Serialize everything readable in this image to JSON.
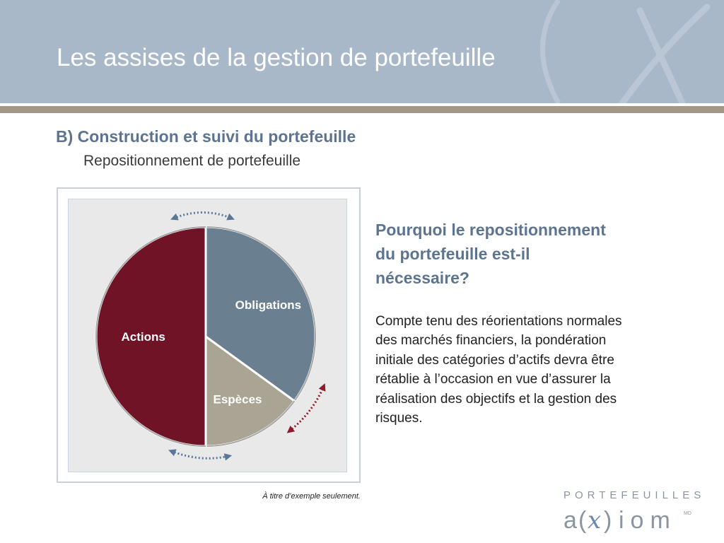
{
  "header": {
    "title": "Les assises de la gestion de portefeuille"
  },
  "section": {
    "title": "B) Construction et suivi du portefeuille",
    "subtitle": "Repositionnement de portefeuille"
  },
  "chart_data": {
    "type": "pie",
    "title": "",
    "slices": [
      {
        "label": "Obligations",
        "value": 35,
        "color": "#6a8090"
      },
      {
        "label": "Espèces",
        "value": 15,
        "color": "#a9a493"
      },
      {
        "label": "Actions",
        "value": 50,
        "color": "#701326"
      }
    ],
    "rebalancing_arrows": [
      "blue-dotted-double-arrow",
      "blue-dotted-double-arrow",
      "red-dotted-double-arrow"
    ]
  },
  "side": {
    "heading": "Pourquoi le repositionnement du portefeuille est-il nécessaire?",
    "body": "Compte tenu des réorientations normales des marchés financiers, la pondération initiale des catégories d’actifs devra être rétablie à l’occasion en vue d’assurer la réalisation des objectifs et la gestion des risques."
  },
  "footnote": "À titre d’exemple seulement.",
  "logo": {
    "top_text": "PORTEFEUILLES",
    "wordmark": "a(x)iom",
    "mark": "MD",
    "watermark_icon": "x-parenthesis-icon"
  }
}
